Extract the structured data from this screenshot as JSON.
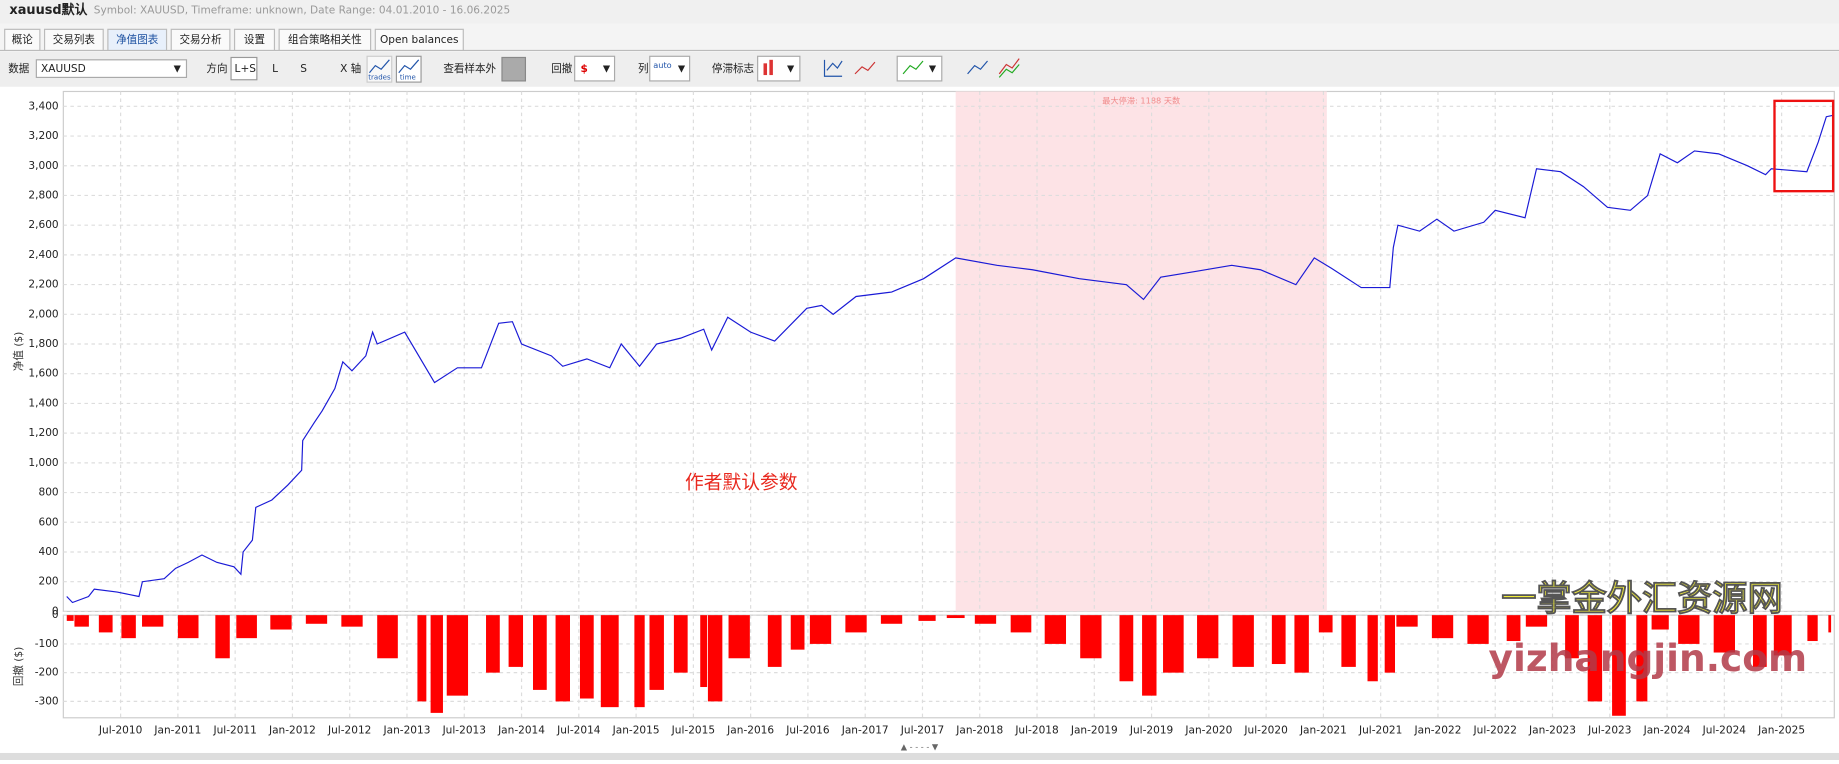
{
  "window": {
    "title": "xauusd默认",
    "subtitle": "Symbol: XAUUSD, Timeframe: unknown, Date Range: 04.01.2010 - 16.06.2025"
  },
  "tabs": [
    "概论",
    "交易列表",
    "净值图表",
    "交易分析",
    "设置",
    "组合策略相关性",
    "Open balances"
  ],
  "toolbar": {
    "data_label": "数据",
    "symbol": "XAUUSD",
    "direction_label": "方向",
    "directions": [
      "L+S",
      "L",
      "S"
    ],
    "xaxis_label": "X 轴",
    "xaxis_options": [
      "trades",
      "time"
    ],
    "out_of_sample_label": "查看样本外",
    "drawdown_label": "回撤",
    "columns_label": "列",
    "columns_option": "auto",
    "stagnation_label": "停滞标志"
  },
  "watermark": [
    "一掌金外汇资源网",
    "yizhangjin.com"
  ],
  "chart_data": [
    {
      "type": "line",
      "y_label": "净值 ($)",
      "color": "#1a1ad6",
      "x": [
        2010.03,
        2010.08,
        2010.22,
        2010.27,
        2010.47,
        2010.66,
        2010.69,
        2010.88,
        2010.98,
        2011.09,
        2011.21,
        2011.34,
        2011.49,
        2011.55,
        2011.57,
        2011.65,
        2011.68,
        2011.82,
        2011.96,
        2012.08,
        2012.09,
        2012.19,
        2012.26,
        2012.37,
        2012.44,
        2012.52,
        2012.64,
        2012.7,
        2012.74,
        2012.98,
        2013.24,
        2013.44,
        2013.65,
        2013.8,
        2013.92,
        2014.0,
        2014.26,
        2014.36,
        2014.57,
        2014.77,
        2014.87,
        2015.03,
        2015.18,
        2015.39,
        2015.59,
        2015.66,
        2015.8,
        2016.0,
        2016.21,
        2016.49,
        2016.62,
        2016.72,
        2016.92,
        2017.23,
        2017.51,
        2017.79,
        2018.15,
        2018.46,
        2018.87,
        2019.28,
        2019.43,
        2019.58,
        2019.89,
        2020.2,
        2020.45,
        2020.76,
        2020.92,
        2021.07,
        2021.33,
        2021.58,
        2021.61,
        2021.65,
        2021.84,
        2021.99,
        2022.14,
        2022.4,
        2022.5,
        2022.76,
        2022.86,
        2023.07,
        2023.27,
        2023.48,
        2023.68,
        2023.83,
        2023.94,
        2024.09,
        2024.24,
        2024.45,
        2024.7,
        2024.86,
        2024.91,
        2025.22,
        2025.32,
        2025.39,
        2025.45
      ],
      "values": [
        100,
        60,
        100,
        150,
        130,
        100,
        200,
        220,
        290,
        330,
        380,
        330,
        300,
        250,
        400,
        480,
        700,
        750,
        850,
        950,
        1150,
        1270,
        1350,
        1500,
        1680,
        1620,
        1720,
        1880,
        1800,
        1880,
        1540,
        1640,
        1640,
        1940,
        1950,
        1800,
        1720,
        1650,
        1700,
        1640,
        1800,
        1650,
        1800,
        1840,
        1900,
        1760,
        1980,
        1880,
        1820,
        2040,
        2060,
        2000,
        2120,
        2150,
        2240,
        2380,
        2330,
        2300,
        2240,
        2200,
        2100,
        2250,
        2290,
        2330,
        2300,
        2200,
        2380,
        2310,
        2180,
        2180,
        2450,
        2600,
        2560,
        2640,
        2560,
        2620,
        2700,
        2650,
        2980,
        2960,
        2860,
        2720,
        2700,
        2800,
        3080,
        3020,
        3100,
        3080,
        3000,
        2940,
        2980,
        2960,
        3160,
        3330,
        3340
      ],
      "xlim": [
        2010,
        2025.46
      ],
      "ylim": [
        0,
        3500
      ],
      "yticks": [
        0,
        200,
        400,
        600,
        800,
        {
          "value": 1000,
          "label": "1,000"
        },
        {
          "value": 1200,
          "label": "1,200"
        },
        {
          "value": 1400,
          "label": "1,400"
        },
        {
          "value": 1600,
          "label": "1,600"
        },
        {
          "value": 1800,
          "label": "1,800"
        },
        {
          "value": 2000,
          "label": "2,000"
        },
        {
          "value": 2200,
          "label": "2,200"
        },
        {
          "value": 2400,
          "label": "2,400"
        },
        {
          "value": 2600,
          "label": "2,600"
        },
        {
          "value": 2800,
          "label": "2,800"
        },
        {
          "value": 3000,
          "label": "3,000"
        },
        {
          "value": 3200,
          "label": "3,200"
        },
        {
          "value": 3400,
          "label": "3,400"
        }
      ],
      "grid": true,
      "stagnation": {
        "label": "最大停滞: 1188 天数",
        "xrange": [
          2017.79,
          2021.03
        ]
      },
      "annotation": "作者默认参数"
    },
    {
      "type": "bar",
      "y_label": "回撤 ($)",
      "color": "#ff0000",
      "x": [
        2010.06,
        2010.16,
        2010.37,
        2010.57,
        2010.78,
        2011.09,
        2011.39,
        2011.6,
        2011.9,
        2012.21,
        2012.52,
        2012.83,
        2013.13,
        2013.26,
        2013.44,
        2013.75,
        2013.95,
        2014.16,
        2014.36,
        2014.57,
        2014.77,
        2015.03,
        2015.18,
        2015.39,
        2015.59,
        2015.69,
        2015.9,
        2016.21,
        2016.41,
        2016.61,
        2016.92,
        2017.23,
        2017.54,
        2017.79,
        2018.05,
        2018.36,
        2018.66,
        2018.97,
        2019.28,
        2019.48,
        2019.69,
        2019.99,
        2020.3,
        2020.61,
        2020.81,
        2021.02,
        2021.22,
        2021.43,
        2021.58,
        2021.73,
        2022.04,
        2022.35,
        2022.66,
        2022.86,
        2023.17,
        2023.37,
        2023.58,
        2023.78,
        2023.94,
        2024.19,
        2024.5,
        2024.81,
        2025.01,
        2025.27,
        2025.42
      ],
      "values": [
        -20,
        -40,
        -60,
        -80,
        -40,
        -80,
        -150,
        -80,
        -50,
        -30,
        -40,
        -150,
        -300,
        -340,
        -280,
        -200,
        -180,
        -260,
        -300,
        -290,
        -320,
        -320,
        -260,
        -200,
        -250,
        -300,
        -150,
        -180,
        -120,
        -100,
        -60,
        -30,
        -20,
        -10,
        -30,
        -60,
        -100,
        -150,
        -230,
        -280,
        -200,
        -150,
        -180,
        -170,
        -200,
        -60,
        -180,
        -230,
        -200,
        -40,
        -80,
        -100,
        -90,
        -40,
        -150,
        -300,
        -350,
        -300,
        -50,
        -100,
        -130,
        -180,
        -140,
        -90,
        -60
      ],
      "xlim": [
        2010,
        2025.46
      ],
      "ylim": [
        -357,
        0
      ],
      "yticks": [
        0,
        -100,
        -200,
        -300
      ],
      "xticks": [
        {
          "value": 2010.5,
          "label": "Jul-2010"
        },
        {
          "value": 2011,
          "label": "Jan-2011"
        },
        {
          "value": 2011.5,
          "label": "Jul-2011"
        },
        {
          "value": 2012,
          "label": "Jan-2012"
        },
        {
          "value": 2012.5,
          "label": "Jul-2012"
        },
        {
          "value": 2013,
          "label": "Jan-2013"
        },
        {
          "value": 2013.5,
          "label": "Jul-2013"
        },
        {
          "value": 2014,
          "label": "Jan-2014"
        },
        {
          "value": 2014.5,
          "label": "Jul-2014"
        },
        {
          "value": 2015,
          "label": "Jan-2015"
        },
        {
          "value": 2015.5,
          "label": "Jul-2015"
        },
        {
          "value": 2016,
          "label": "Jan-2016"
        },
        {
          "value": 2016.5,
          "label": "Jul-2016"
        },
        {
          "value": 2017,
          "label": "Jan-2017"
        },
        {
          "value": 2017.5,
          "label": "Jul-2017"
        },
        {
          "value": 2018,
          "label": "Jan-2018"
        },
        {
          "value": 2018.5,
          "label": "Jul-2018"
        },
        {
          "value": 2019,
          "label": "Jan-2019"
        },
        {
          "value": 2019.5,
          "label": "Jul-2019"
        },
        {
          "value": 2020,
          "label": "Jan-2020"
        },
        {
          "value": 2020.5,
          "label": "Jul-2020"
        },
        {
          "value": 2021,
          "label": "Jan-2021"
        },
        {
          "value": 2021.5,
          "label": "Jul-2021"
        },
        {
          "value": 2022,
          "label": "Jan-2022"
        },
        {
          "value": 2022.5,
          "label": "Jul-2022"
        },
        {
          "value": 2023,
          "label": "Jan-2023"
        },
        {
          "value": 2023.5,
          "label": "Jul-2023"
        },
        {
          "value": 2024,
          "label": "Jan-2024"
        },
        {
          "value": 2024.5,
          "label": "Jul-2024"
        },
        {
          "value": 2025,
          "label": "Jan-2025"
        }
      ],
      "grid": true
    }
  ]
}
